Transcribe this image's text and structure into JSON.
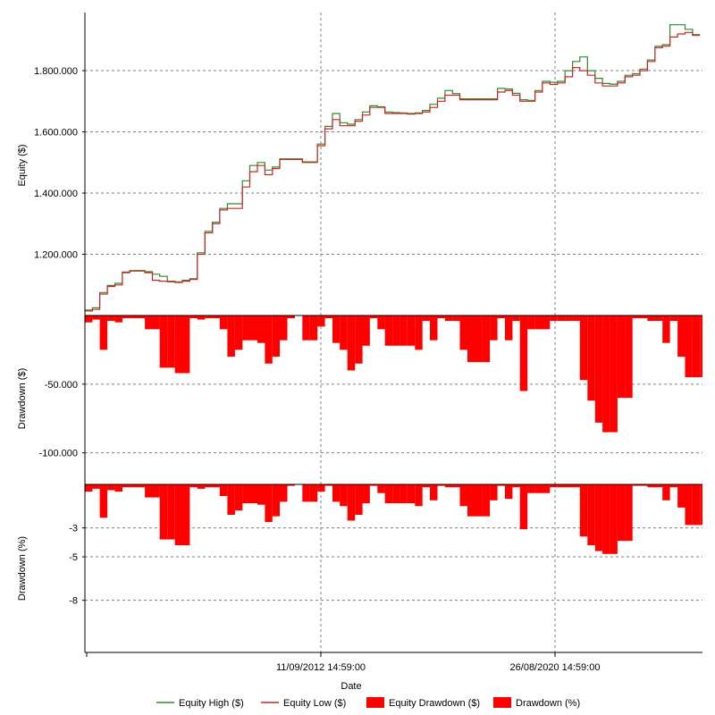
{
  "colors": {
    "equity_high": "#2e8b2e",
    "equity_low": "#c62828",
    "drawdown_fill": "#ff0000",
    "grid": "#7f7f7f",
    "axis": "#000000"
  },
  "chart_data": [
    {
      "type": "line",
      "panel": "equity",
      "ylabel": "Equity ($)",
      "xlabel": "Date",
      "ylim": [
        1000000,
        1990000
      ],
      "yticks": [
        1200000,
        1400000,
        1600000,
        1800000
      ],
      "ytick_labels": [
        "1.200.000",
        "1.400.000",
        "1.600.000",
        "1.800.000"
      ],
      "xticks": [
        "11/09/2012 14:59:00",
        "26/08/2020 14:59:00"
      ],
      "xlim": [
        "2004-09-01",
        "2025-04-01"
      ],
      "grid": true,
      "series": [
        {
          "name": "Equity Low ($)",
          "x": [
            "2004-09-01",
            "2004-12-01",
            "2005-03-01",
            "2005-06-01",
            "2005-09-01",
            "2005-12-01",
            "2006-03-01",
            "2006-06-01",
            "2006-09-01",
            "2006-12-01",
            "2007-03-01",
            "2007-06-01",
            "2007-09-01",
            "2007-12-01",
            "2008-03-01",
            "2008-06-01",
            "2008-09-01",
            "2008-12-01",
            "2009-03-01",
            "2009-06-01",
            "2009-09-01",
            "2009-12-01",
            "2010-03-01",
            "2010-06-01",
            "2010-09-01",
            "2010-12-01",
            "2011-03-01",
            "2011-06-01",
            "2011-09-01",
            "2011-12-01",
            "2012-03-01",
            "2012-06-01",
            "2012-09-01",
            "2012-12-01",
            "2013-03-01",
            "2013-06-01",
            "2013-09-01",
            "2013-12-01",
            "2014-03-01",
            "2014-06-01",
            "2014-09-01",
            "2014-12-01",
            "2015-03-01",
            "2015-06-01",
            "2015-09-01",
            "2015-12-01",
            "2016-03-01",
            "2016-06-01",
            "2016-09-01",
            "2016-12-01",
            "2017-03-01",
            "2017-06-01",
            "2017-09-01",
            "2017-12-01",
            "2018-03-01",
            "2018-06-01",
            "2018-09-01",
            "2018-12-01",
            "2019-03-01",
            "2019-06-01",
            "2019-09-01",
            "2019-12-01",
            "2020-03-01",
            "2020-06-01",
            "2020-09-01",
            "2020-12-01",
            "2021-03-01",
            "2021-06-01",
            "2021-09-01",
            "2021-12-01",
            "2022-03-01",
            "2022-06-01",
            "2022-09-01",
            "2022-12-01",
            "2023-03-01",
            "2023-06-01",
            "2023-09-01",
            "2023-12-01",
            "2024-03-01",
            "2024-06-01",
            "2024-09-01",
            "2024-12-01",
            "2025-03-01"
          ],
          "y": [
            1015000,
            1020000,
            1070000,
            1095000,
            1100000,
            1140000,
            1145000,
            1145000,
            1140000,
            1115000,
            1112000,
            1110000,
            1108000,
            1112000,
            1118000,
            1200000,
            1270000,
            1300000,
            1345000,
            1350000,
            1350000,
            1420000,
            1470000,
            1490000,
            1460000,
            1480000,
            1510000,
            1510000,
            1510000,
            1500000,
            1500000,
            1555000,
            1610000,
            1640000,
            1620000,
            1620000,
            1635000,
            1655000,
            1680000,
            1680000,
            1660000,
            1660000,
            1660000,
            1658000,
            1660000,
            1665000,
            1680000,
            1700000,
            1720000,
            1720000,
            1705000,
            1705000,
            1705000,
            1705000,
            1705000,
            1730000,
            1735000,
            1720000,
            1700000,
            1700000,
            1730000,
            1760000,
            1755000,
            1760000,
            1780000,
            1810000,
            1800000,
            1785000,
            1760000,
            1750000,
            1750000,
            1760000,
            1780000,
            1785000,
            1800000,
            1830000,
            1875000,
            1880000,
            1910000,
            1920000,
            1925000,
            1915000,
            1915000
          ]
        },
        {
          "name": "Equity High ($)",
          "x": [
            "2004-09-01",
            "2004-12-01",
            "2005-03-01",
            "2005-06-01",
            "2005-09-01",
            "2005-12-01",
            "2006-03-01",
            "2006-06-01",
            "2006-09-01",
            "2006-12-01",
            "2007-03-01",
            "2007-06-01",
            "2007-09-01",
            "2007-12-01",
            "2008-03-01",
            "2008-06-01",
            "2008-09-01",
            "2008-12-01",
            "2009-03-01",
            "2009-06-01",
            "2009-09-01",
            "2009-12-01",
            "2010-03-01",
            "2010-06-01",
            "2010-09-01",
            "2010-12-01",
            "2011-03-01",
            "2011-06-01",
            "2011-09-01",
            "2011-12-01",
            "2012-03-01",
            "2012-06-01",
            "2012-09-01",
            "2012-12-01",
            "2013-03-01",
            "2013-06-01",
            "2013-09-01",
            "2013-12-01",
            "2014-03-01",
            "2014-06-01",
            "2014-09-01",
            "2014-12-01",
            "2015-03-01",
            "2015-06-01",
            "2015-09-01",
            "2015-12-01",
            "2016-03-01",
            "2016-06-01",
            "2016-09-01",
            "2016-12-01",
            "2017-03-01",
            "2017-06-01",
            "2017-09-01",
            "2017-12-01",
            "2018-03-01",
            "2018-06-01",
            "2018-09-01",
            "2018-12-01",
            "2019-03-01",
            "2019-06-01",
            "2019-09-01",
            "2019-12-01",
            "2020-03-01",
            "2020-06-01",
            "2020-09-01",
            "2020-12-01",
            "2021-03-01",
            "2021-06-01",
            "2021-09-01",
            "2021-12-01",
            "2022-03-01",
            "2022-06-01",
            "2022-09-01",
            "2022-12-01",
            "2023-03-01",
            "2023-06-01",
            "2023-09-01",
            "2023-12-01",
            "2024-03-01",
            "2024-06-01",
            "2024-09-01",
            "2024-12-01",
            "2025-03-01"
          ],
          "y": [
            1018000,
            1025000,
            1075000,
            1098000,
            1105000,
            1142000,
            1147000,
            1147000,
            1143000,
            1135000,
            1128000,
            1112000,
            1110000,
            1115000,
            1120000,
            1205000,
            1275000,
            1305000,
            1350000,
            1365000,
            1365000,
            1440000,
            1490000,
            1500000,
            1475000,
            1485000,
            1512000,
            1512000,
            1512000,
            1502000,
            1502000,
            1560000,
            1618000,
            1660000,
            1630000,
            1625000,
            1640000,
            1665000,
            1685000,
            1682000,
            1665000,
            1663000,
            1662000,
            1660000,
            1662000,
            1670000,
            1690000,
            1710000,
            1735000,
            1725000,
            1708000,
            1708000,
            1708000,
            1708000,
            1708000,
            1742000,
            1740000,
            1726000,
            1705000,
            1703000,
            1735000,
            1765000,
            1762000,
            1765000,
            1800000,
            1830000,
            1845000,
            1800000,
            1775000,
            1758000,
            1756000,
            1765000,
            1785000,
            1790000,
            1805000,
            1835000,
            1880000,
            1885000,
            1950000,
            1950000,
            1935000,
            1918000,
            1918000
          ]
        }
      ]
    },
    {
      "type": "area",
      "panel": "drawdown_usd",
      "ylabel": "Drawdown ($)",
      "ylim": [
        -123000,
        0
      ],
      "yticks": [
        -50000,
        -100000
      ],
      "ytick_labels": [
        "-50.000",
        "-100.000"
      ],
      "grid": true,
      "series": [
        {
          "name": "Equity Drawdown ($)",
          "x": [
            "2004-09-01",
            "2004-12-01",
            "2005-03-01",
            "2005-06-01",
            "2005-09-01",
            "2005-12-01",
            "2006-03-01",
            "2006-06-01",
            "2006-09-01",
            "2006-12-01",
            "2007-03-01",
            "2007-06-01",
            "2007-09-01",
            "2007-12-01",
            "2008-03-01",
            "2008-06-01",
            "2008-09-01",
            "2008-12-01",
            "2009-03-01",
            "2009-06-01",
            "2009-09-01",
            "2009-12-01",
            "2010-03-01",
            "2010-06-01",
            "2010-09-01",
            "2010-12-01",
            "2011-03-01",
            "2011-06-01",
            "2011-09-01",
            "2011-12-01",
            "2012-03-01",
            "2012-06-01",
            "2012-09-01",
            "2012-12-01",
            "2013-03-01",
            "2013-06-01",
            "2013-09-01",
            "2013-12-01",
            "2014-03-01",
            "2014-06-01",
            "2014-09-01",
            "2014-12-01",
            "2015-03-01",
            "2015-06-01",
            "2015-09-01",
            "2015-12-01",
            "2016-03-01",
            "2016-06-01",
            "2016-09-01",
            "2016-12-01",
            "2017-03-01",
            "2017-06-01",
            "2017-09-01",
            "2017-12-01",
            "2018-03-01",
            "2018-06-01",
            "2018-09-01",
            "2018-12-01",
            "2019-03-01",
            "2019-06-01",
            "2019-09-01",
            "2019-12-01",
            "2020-03-01",
            "2020-06-01",
            "2020-09-01",
            "2020-12-01",
            "2021-03-01",
            "2021-06-01",
            "2021-09-01",
            "2021-12-01",
            "2022-03-01",
            "2022-06-01",
            "2022-09-01",
            "2022-12-01",
            "2023-03-01",
            "2023-06-01",
            "2023-09-01",
            "2023-12-01",
            "2024-03-01",
            "2024-06-01",
            "2024-09-01",
            "2024-12-01",
            "2025-03-01"
          ],
          "y": [
            -5000,
            -3000,
            -25000,
            -4000,
            -5000,
            -2000,
            -2000,
            -2000,
            -10000,
            -10000,
            -38000,
            -38000,
            -42000,
            -42000,
            -2000,
            -3000,
            -2000,
            -2000,
            -10000,
            -30000,
            -25000,
            -18000,
            -18000,
            -20000,
            -35000,
            -30000,
            -18000,
            -2000,
            0,
            -18000,
            -18000,
            -8000,
            -2000,
            -20000,
            -25000,
            -40000,
            -35000,
            -22000,
            -2000,
            -10000,
            -22000,
            -22000,
            -22000,
            -22000,
            -25000,
            -4000,
            -18000,
            -2000,
            -4000,
            -4000,
            -25000,
            -34000,
            -34000,
            -34000,
            -18000,
            -2000,
            -18000,
            -4000,
            -55000,
            -10000,
            -10000,
            -10000,
            -4000,
            -4000,
            -4000,
            -4000,
            -47000,
            -62000,
            -78000,
            -85000,
            -85000,
            -60000,
            -60000,
            -2000,
            -2000,
            -4000,
            -4000,
            -20000,
            -4000,
            -30000,
            -45000,
            -45000,
            -45000
          ]
        }
      ]
    },
    {
      "type": "area",
      "panel": "drawdown_pct",
      "ylabel": "Drawdown (%)",
      "ylim": [
        -11.6,
        0
      ],
      "yticks": [
        -3,
        -5,
        -8
      ],
      "ytick_labels": [
        "-3",
        "-5",
        "-8"
      ],
      "grid": true,
      "series": [
        {
          "name": "Drawdown (%)",
          "x": [
            "2004-09-01",
            "2004-12-01",
            "2005-03-01",
            "2005-06-01",
            "2005-09-01",
            "2005-12-01",
            "2006-03-01",
            "2006-06-01",
            "2006-09-01",
            "2006-12-01",
            "2007-03-01",
            "2007-06-01",
            "2007-09-01",
            "2007-12-01",
            "2008-03-01",
            "2008-06-01",
            "2008-09-01",
            "2008-12-01",
            "2009-03-01",
            "2009-06-01",
            "2009-09-01",
            "2009-12-01",
            "2010-03-01",
            "2010-06-01",
            "2010-09-01",
            "2010-12-01",
            "2011-03-01",
            "2011-06-01",
            "2011-09-01",
            "2011-12-01",
            "2012-03-01",
            "2012-06-01",
            "2012-09-01",
            "2012-12-01",
            "2013-03-01",
            "2013-06-01",
            "2013-09-01",
            "2013-12-01",
            "2014-03-01",
            "2014-06-01",
            "2014-09-01",
            "2014-12-01",
            "2015-03-01",
            "2015-06-01",
            "2015-09-01",
            "2015-12-01",
            "2016-03-01",
            "2016-06-01",
            "2016-09-01",
            "2016-12-01",
            "2017-03-01",
            "2017-06-01",
            "2017-09-01",
            "2017-12-01",
            "2018-03-01",
            "2018-06-01",
            "2018-09-01",
            "2018-12-01",
            "2019-03-01",
            "2019-06-01",
            "2019-09-01",
            "2019-12-01",
            "2020-03-01",
            "2020-06-01",
            "2020-09-01",
            "2020-12-01",
            "2021-03-01",
            "2021-06-01",
            "2021-09-01",
            "2021-12-01",
            "2022-03-01",
            "2022-06-01",
            "2022-09-01",
            "2022-12-01",
            "2023-03-01",
            "2023-06-01",
            "2023-09-01",
            "2023-12-01",
            "2024-03-01",
            "2024-06-01",
            "2024-09-01",
            "2024-12-01",
            "2025-03-01"
          ],
          "y": [
            -0.5,
            -0.3,
            -2.3,
            -0.4,
            -0.5,
            -0.2,
            -0.2,
            -0.2,
            -0.9,
            -0.9,
            -3.8,
            -3.8,
            -4.2,
            -4.2,
            -0.2,
            -0.3,
            -0.2,
            -0.2,
            -0.8,
            -2.1,
            -1.8,
            -1.3,
            -1.3,
            -1.4,
            -2.6,
            -2.2,
            -1.2,
            -0.1,
            0,
            -1.2,
            -1.2,
            -0.5,
            -0.1,
            -1.2,
            -1.5,
            -2.5,
            -2.1,
            -1.3,
            -0.1,
            -0.6,
            -1.3,
            -1.3,
            -1.3,
            -1.3,
            -1.5,
            -0.2,
            -1.1,
            -0.1,
            -0.2,
            -0.2,
            -1.5,
            -2.2,
            -2.2,
            -2.2,
            -1.1,
            -0.1,
            -1.0,
            -0.2,
            -3.1,
            -0.6,
            -0.6,
            -0.6,
            -0.2,
            -0.2,
            -0.2,
            -0.2,
            -3.6,
            -4.2,
            -4.6,
            -4.8,
            -4.8,
            -3.9,
            -3.9,
            -0.1,
            -0.1,
            -0.2,
            -0.2,
            -1.1,
            -0.2,
            -1.6,
            -2.8,
            -2.8,
            -2.8
          ]
        }
      ]
    }
  ],
  "legend": {
    "items": [
      {
        "label": "Equity High ($)",
        "kind": "line",
        "color_key": "equity_high"
      },
      {
        "label": "Equity Low ($)",
        "kind": "line",
        "color_key": "equity_low"
      },
      {
        "label": "Equity Drawdown ($)",
        "kind": "box",
        "color_key": "drawdown_fill"
      },
      {
        "label": "Drawdown (%)",
        "kind": "box",
        "color_key": "drawdown_fill"
      }
    ],
    "placement": "bottom"
  }
}
